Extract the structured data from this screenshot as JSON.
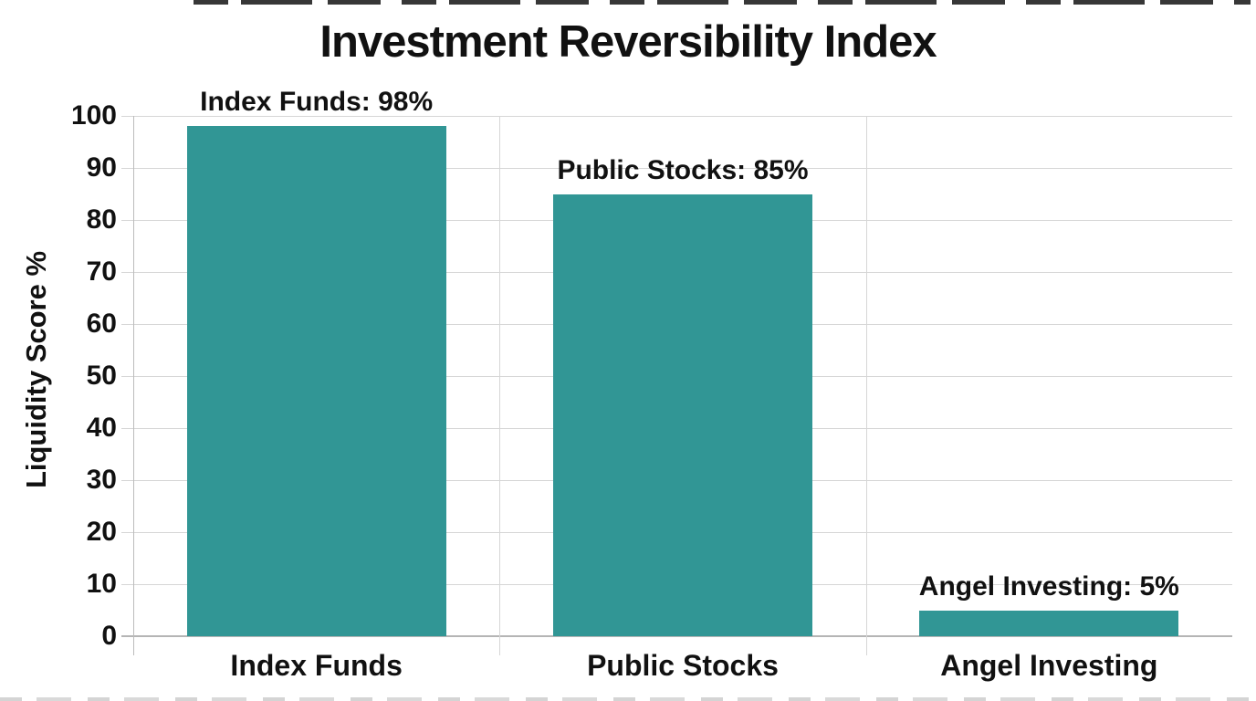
{
  "chart_data": {
    "type": "bar",
    "title": "Investment Reversibility Index",
    "xlabel": "",
    "ylabel": "Liquidity Score %",
    "categories": [
      "Index Funds",
      "Public Stocks",
      "Angel Investing"
    ],
    "values": [
      98,
      85,
      5
    ],
    "value_labels": [
      "Index Funds: 98%",
      "Public Stocks: 85%",
      "Angel Investing: 5%"
    ],
    "unit": "%",
    "ylim": [
      0,
      100
    ],
    "yticks": [
      0,
      10,
      20,
      30,
      40,
      50,
      60,
      70,
      80,
      90,
      100
    ],
    "grid": "on",
    "legend_position": "none",
    "bar_color": "#319695",
    "gridline_color": "#d6d6d6",
    "zero_line_color": "#b5b5b5",
    "axis_line_color": "#bcbcbc",
    "text_color": "#111111"
  }
}
